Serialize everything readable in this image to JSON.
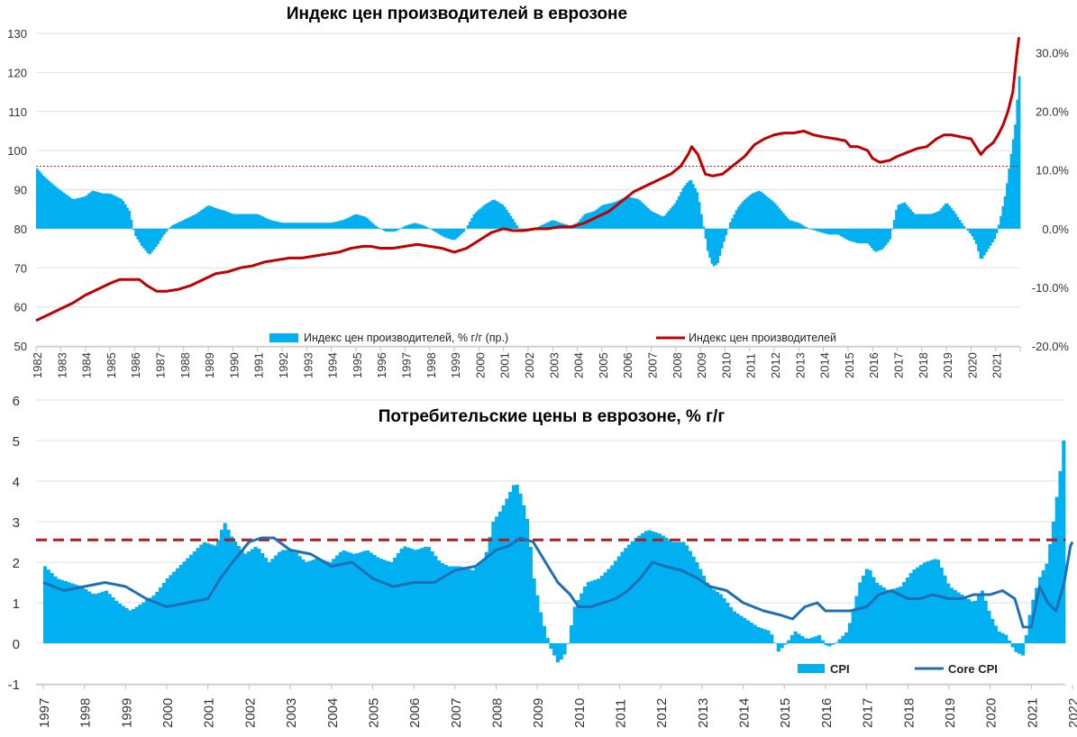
{
  "colors": {
    "bar": "#00b0f0",
    "ppi_line": "#c00000",
    "core_line": "#1f6fb4",
    "ref_line_top": "#a02030",
    "ref_line_bottom": "#b01c1c",
    "grid": "#e0e0e0"
  },
  "chart_data": [
    {
      "type": "bar+line",
      "title": "Индекс цен производителей в еврозоне",
      "left_axis": {
        "ylim": [
          50,
          130
        ],
        "ticks": [
          "50",
          "60",
          "70",
          "80",
          "90",
          "100",
          "110",
          "120",
          "130"
        ]
      },
      "right_axis": {
        "ylim": [
          -20,
          33.3
        ],
        "ticks": [
          "-20.0%",
          "-10.0%",
          "0.0%",
          "10.0%",
          "20.0%",
          "30.0%"
        ]
      },
      "x_range": [
        1982,
        2022
      ],
      "x_ticks": [
        "1982",
        "1983",
        "1984",
        "1985",
        "1986",
        "1987",
        "1988",
        "1989",
        "1990",
        "1991",
        "1992",
        "1993",
        "1994",
        "1995",
        "1996",
        "1997",
        "1998",
        "1999",
        "2000",
        "2001",
        "2002",
        "2003",
        "2004",
        "2005",
        "2006",
        "2007",
        "2008",
        "2009",
        "2010",
        "2011",
        "2012",
        "2013",
        "2014",
        "2015",
        "2016",
        "2017",
        "2018",
        "2019",
        "2020",
        "2021"
      ],
      "reference_line": {
        "axis": "left",
        "value": 96
      },
      "legend": {
        "position": "bottom",
        "bar_label": "Индекс цен производителей, % г/г (пр.)",
        "line_label": "Индекс цен производителей"
      },
      "series": [
        {
          "name": "Индекс цен производителей, % г/г (пр.)",
          "type": "bar",
          "axis": "right",
          "unit": "%",
          "x": [
            1982.0,
            1982.3,
            1982.7,
            1983.0,
            1983.5,
            1984.0,
            1984.3,
            1984.7,
            1985.0,
            1985.5,
            1985.8,
            1986.0,
            1986.3,
            1986.6,
            1986.9,
            1987.2,
            1987.5,
            1988.0,
            1988.5,
            1989.0,
            1989.3,
            1989.7,
            1990.0,
            1990.5,
            1991.0,
            1991.5,
            1992.0,
            1992.5,
            1993.0,
            1993.5,
            1994.0,
            1994.5,
            1995.0,
            1995.4,
            1995.8,
            1996.2,
            1996.6,
            1997.0,
            1997.4,
            1997.8,
            1998.2,
            1998.6,
            1999.0,
            1999.4,
            1999.8,
            2000.2,
            2000.6,
            2001.0,
            2001.4,
            2001.7,
            2002.0,
            2002.5,
            2003.0,
            2003.3,
            2003.7,
            2004.0,
            2004.3,
            2004.7,
            2005.0,
            2005.5,
            2006.0,
            2006.5,
            2007.0,
            2007.5,
            2008.0,
            2008.3,
            2008.6,
            2008.9,
            2009.1,
            2009.3,
            2009.5,
            2009.7,
            2009.9,
            2010.2,
            2010.5,
            2010.8,
            2011.1,
            2011.4,
            2011.7,
            2012.0,
            2012.3,
            2012.6,
            2013.0,
            2013.4,
            2013.8,
            2014.2,
            2014.6,
            2015.0,
            2015.4,
            2015.8,
            2016.1,
            2016.4,
            2016.7,
            2017.0,
            2017.3,
            2017.7,
            2018.0,
            2018.4,
            2018.7,
            2019.0,
            2019.3,
            2019.7,
            2020.0,
            2020.2,
            2020.4,
            2020.7,
            2021.0,
            2021.2,
            2021.4,
            2021.6,
            2021.8,
            2021.95
          ],
          "values": [
            10.5,
            9.0,
            7.5,
            6.5,
            5.0,
            5.5,
            6.5,
            6.0,
            6.0,
            5.0,
            3.0,
            -1.0,
            -3.0,
            -4.5,
            -3.0,
            -1.0,
            0.5,
            1.5,
            2.5,
            4.0,
            3.5,
            3.0,
            2.5,
            2.5,
            2.5,
            1.5,
            1.0,
            1.0,
            1.0,
            1.0,
            1.0,
            1.5,
            2.5,
            2.0,
            0.5,
            -0.5,
            -0.5,
            0.5,
            1.0,
            0.5,
            -0.5,
            -1.5,
            -2.0,
            -0.5,
            2.5,
            4.0,
            5.0,
            4.0,
            1.5,
            -0.5,
            -0.5,
            0.5,
            1.5,
            1.0,
            0.5,
            1.0,
            2.5,
            3.0,
            4.0,
            4.5,
            5.5,
            5.0,
            3.0,
            2.0,
            4.5,
            7.0,
            8.5,
            6.0,
            1.0,
            -4.0,
            -6.5,
            -6.0,
            -3.0,
            1.0,
            3.5,
            5.0,
            6.0,
            6.5,
            5.5,
            4.5,
            3.0,
            1.5,
            1.0,
            0.0,
            -0.5,
            -1.0,
            -1.0,
            -2.0,
            -2.5,
            -2.5,
            -4.0,
            -3.5,
            -2.0,
            4.0,
            4.5,
            2.5,
            2.5,
            2.5,
            3.0,
            4.5,
            3.0,
            0.5,
            -1.0,
            -2.5,
            -5.5,
            -3.5,
            -1.5,
            2.0,
            6.0,
            12.0,
            18.0,
            26.0
          ]
        },
        {
          "name": "Индекс цен производителей",
          "type": "line",
          "axis": "left",
          "x": [
            1982.0,
            1982.5,
            1983.0,
            1983.5,
            1984.0,
            1984.5,
            1985.0,
            1985.4,
            1985.8,
            1986.2,
            1986.5,
            1986.9,
            1987.3,
            1987.8,
            1988.3,
            1988.8,
            1989.3,
            1989.8,
            1990.3,
            1990.8,
            1991.3,
            1991.8,
            1992.3,
            1992.8,
            1993.3,
            1993.8,
            1994.3,
            1994.8,
            1995.3,
            1995.6,
            1996.0,
            1996.5,
            1997.0,
            1997.5,
            1998.0,
            1998.5,
            1999.0,
            1999.5,
            2000.0,
            2000.5,
            2001.0,
            2001.4,
            2001.8,
            2002.3,
            2002.8,
            2003.3,
            2003.8,
            2004.3,
            2004.8,
            2005.3,
            2005.8,
            2006.3,
            2006.8,
            2007.3,
            2007.8,
            2008.2,
            2008.5,
            2008.65,
            2008.9,
            2009.2,
            2009.5,
            2009.9,
            2010.3,
            2010.8,
            2011.2,
            2011.6,
            2012.0,
            2012.4,
            2012.8,
            2013.2,
            2013.6,
            2014.0,
            2014.5,
            2014.9,
            2015.1,
            2015.4,
            2015.8,
            2016.0,
            2016.3,
            2016.7,
            2017.0,
            2017.4,
            2017.8,
            2018.2,
            2018.6,
            2018.9,
            2019.2,
            2019.6,
            2020.0,
            2020.2,
            2020.4,
            2020.6,
            2020.9,
            2021.1,
            2021.3,
            2021.5,
            2021.7,
            2021.85,
            2021.95
          ],
          "values": [
            56.5,
            58,
            59.5,
            61,
            63,
            64.5,
            66,
            67,
            67,
            67,
            65.5,
            64,
            64,
            64.5,
            65.5,
            67,
            68.5,
            69,
            70,
            70.5,
            71.5,
            72,
            72.5,
            72.5,
            73,
            73.5,
            74,
            75,
            75.5,
            75.5,
            75,
            75,
            75.5,
            76,
            75.5,
            75,
            74,
            75,
            77,
            79,
            80,
            79.5,
            79.5,
            80,
            80,
            80.5,
            80.5,
            81.5,
            83,
            84.5,
            87,
            89.5,
            91,
            92.5,
            94,
            96,
            99,
            101,
            99,
            94,
            93.5,
            94,
            96,
            98.5,
            101.5,
            103,
            104,
            104.5,
            104.5,
            105,
            104,
            103.5,
            103,
            102.5,
            101,
            101,
            100,
            98,
            97,
            97.5,
            98.5,
            99.5,
            100.5,
            101,
            103,
            104,
            104,
            103.5,
            103,
            101,
            99,
            100.5,
            102,
            104,
            106.5,
            110,
            115,
            124,
            129
          ]
        }
      ]
    },
    {
      "type": "bar+line",
      "title": "Потребительские цены в еврозоне, % г/г",
      "ylim": [
        -1,
        6
      ],
      "y_ticks": [
        "-1",
        "0",
        "1",
        "2",
        "3",
        "4",
        "5",
        "6"
      ],
      "x_range": [
        1997,
        2022
      ],
      "x_ticks": [
        "1997",
        "1998",
        "1999",
        "2000",
        "2001",
        "2002",
        "2003",
        "2004",
        "2005",
        "2006",
        "2007",
        "2008",
        "2009",
        "2010",
        "2011",
        "2012",
        "2013",
        "2014",
        "2015",
        "2016",
        "2017",
        "2018",
        "2019",
        "2020",
        "2021",
        "2022"
      ],
      "reference_line": {
        "value": 2.55,
        "style": "dashed"
      },
      "legend": {
        "position": "bottom-right",
        "bar_label": "CPI",
        "line_label": "Core CPI"
      },
      "series": [
        {
          "name": "CPI",
          "type": "bar",
          "x": [
            1997.0,
            1997.3,
            1997.6,
            1997.9,
            1998.2,
            1998.5,
            1998.8,
            1999.1,
            1999.4,
            1999.7,
            2000.0,
            2000.3,
            2000.6,
            2000.9,
            2001.2,
            2001.4,
            2001.6,
            2001.9,
            2002.2,
            2002.5,
            2002.8,
            2003.1,
            2003.4,
            2003.7,
            2004.0,
            2004.3,
            2004.6,
            2004.9,
            2005.2,
            2005.5,
            2005.8,
            2006.1,
            2006.4,
            2006.7,
            2006.9,
            2007.2,
            2007.5,
            2007.8,
            2008.0,
            2008.2,
            2008.4,
            2008.55,
            2008.7,
            2008.85,
            2009.0,
            2009.2,
            2009.4,
            2009.6,
            2009.8,
            2010.0,
            2010.3,
            2010.6,
            2010.9,
            2011.2,
            2011.5,
            2011.8,
            2012.1,
            2012.4,
            2012.7,
            2013.0,
            2013.3,
            2013.6,
            2013.9,
            2014.2,
            2014.5,
            2014.8,
            2015.0,
            2015.2,
            2015.4,
            2015.7,
            2016.0,
            2016.2,
            2016.4,
            2016.7,
            2017.0,
            2017.2,
            2017.4,
            2017.7,
            2018.0,
            2018.3,
            2018.6,
            2018.9,
            2019.2,
            2019.5,
            2019.8,
            2020.0,
            2020.2,
            2020.4,
            2020.6,
            2020.8,
            2021.0,
            2021.2,
            2021.4,
            2021.6,
            2021.75,
            2021.9,
            2022.0
          ],
          "values": [
            1.9,
            1.6,
            1.5,
            1.4,
            1.2,
            1.3,
            1.0,
            0.8,
            1.0,
            1.2,
            1.6,
            1.9,
            2.2,
            2.5,
            2.4,
            3.0,
            2.6,
            2.2,
            2.4,
            2.0,
            2.3,
            2.3,
            2.0,
            2.1,
            2.0,
            2.3,
            2.2,
            2.3,
            2.1,
            2.0,
            2.4,
            2.3,
            2.4,
            2.0,
            1.9,
            1.9,
            1.8,
            2.1,
            3.0,
            3.3,
            3.7,
            4.0,
            3.6,
            3.0,
            1.6,
            0.6,
            -0.1,
            -0.5,
            -0.2,
            0.9,
            1.5,
            1.6,
            1.9,
            2.3,
            2.6,
            2.8,
            2.7,
            2.5,
            2.5,
            2.0,
            1.4,
            1.2,
            0.8,
            0.6,
            0.4,
            0.3,
            -0.2,
            0.0,
            0.3,
            0.1,
            0.2,
            -0.1,
            0.0,
            0.3,
            1.5,
            1.9,
            1.5,
            1.3,
            1.4,
            1.8,
            2.0,
            2.1,
            1.4,
            1.2,
            1.0,
            1.3,
            0.7,
            0.3,
            0.2,
            -0.2,
            -0.3,
            0.9,
            1.6,
            2.0,
            3.0,
            4.1,
            5.0
          ]
        },
        {
          "name": "Core CPI",
          "type": "line",
          "x": [
            1997.0,
            1997.5,
            1998.0,
            1998.5,
            1999.0,
            1999.5,
            2000.0,
            2000.5,
            2001.0,
            2001.3,
            2001.6,
            2002.0,
            2002.3,
            2002.6,
            2003.0,
            2003.5,
            2004.0,
            2004.5,
            2005.0,
            2005.5,
            2006.0,
            2006.5,
            2007.0,
            2007.5,
            2008.0,
            2008.3,
            2008.6,
            2008.9,
            2009.2,
            2009.5,
            2009.8,
            2010.0,
            2010.3,
            2010.6,
            2010.9,
            2011.2,
            2011.5,
            2011.8,
            2012.1,
            2012.5,
            2012.9,
            2013.2,
            2013.6,
            2014.0,
            2014.5,
            2014.9,
            2015.2,
            2015.5,
            2015.8,
            2016.0,
            2016.3,
            2016.6,
            2017.0,
            2017.3,
            2017.6,
            2018.0,
            2018.3,
            2018.6,
            2019.0,
            2019.3,
            2019.6,
            2020.0,
            2020.3,
            2020.6,
            2020.8,
            2021.0,
            2021.2,
            2021.4,
            2021.6,
            2021.8,
            2021.95,
            2022.0
          ],
          "values": [
            1.5,
            1.3,
            1.4,
            1.5,
            1.4,
            1.1,
            0.9,
            1.0,
            1.1,
            1.6,
            2.0,
            2.5,
            2.6,
            2.6,
            2.3,
            2.2,
            1.9,
            2.0,
            1.6,
            1.4,
            1.5,
            1.5,
            1.8,
            1.9,
            2.3,
            2.4,
            2.6,
            2.5,
            2.0,
            1.5,
            1.2,
            0.9,
            0.9,
            1.0,
            1.1,
            1.3,
            1.6,
            2.0,
            1.9,
            1.8,
            1.6,
            1.4,
            1.3,
            1.0,
            0.8,
            0.7,
            0.6,
            0.9,
            1.0,
            0.8,
            0.8,
            0.8,
            0.9,
            1.2,
            1.3,
            1.1,
            1.1,
            1.2,
            1.1,
            1.1,
            1.2,
            1.2,
            1.3,
            1.1,
            0.4,
            0.4,
            1.4,
            1.0,
            0.8,
            1.5,
            2.4,
            2.5
          ]
        }
      ]
    }
  ]
}
